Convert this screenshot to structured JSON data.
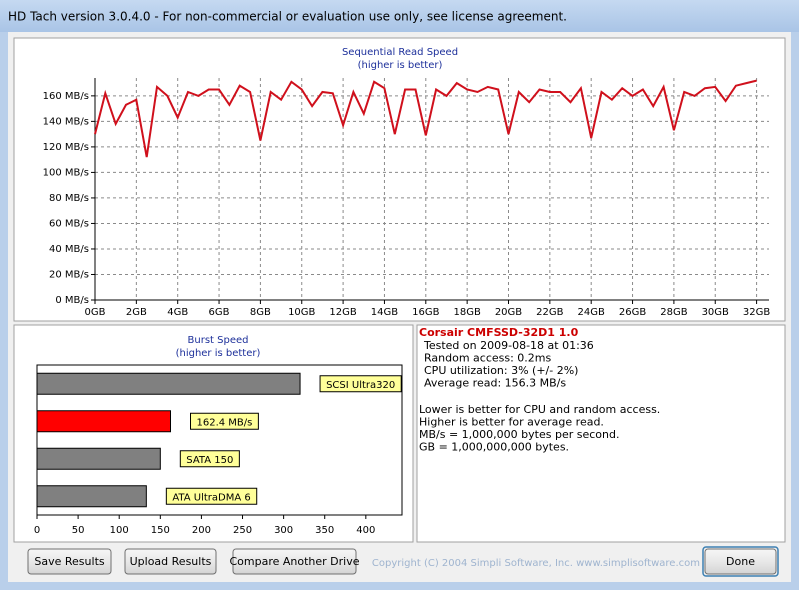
{
  "window": {
    "title": "HD Tach version 3.0.4.0  - For non-commercial or evaluation use only, see license agreement."
  },
  "chart_data": [
    {
      "type": "line",
      "title": "Sequential Read Speed",
      "subtitle": "(higher is better)",
      "color": "#d0101c",
      "grid": true,
      "x": [
        0,
        0.5,
        1,
        1.5,
        2,
        2.5,
        3,
        3.5,
        4,
        4.5,
        5,
        5.5,
        6,
        6.5,
        7,
        7.5,
        8,
        8.5,
        9,
        9.5,
        10,
        10.5,
        11,
        11.5,
        12,
        12.5,
        13,
        13.5,
        14,
        14.5,
        15,
        15.5,
        16,
        16.5,
        17,
        17.5,
        18,
        18.5,
        19,
        19.5,
        20,
        20.5,
        21,
        21.5,
        22,
        22.5,
        23,
        23.5,
        24,
        24.5,
        25,
        25.5,
        26,
        26.5,
        27,
        27.5,
        28,
        28.5,
        29,
        29.5,
        30,
        30.5,
        31,
        31.5,
        32
      ],
      "values": [
        130,
        162,
        138,
        153,
        157,
        112,
        167,
        160,
        143,
        163,
        160,
        165,
        165,
        153,
        168,
        163,
        125,
        163,
        157,
        171,
        165,
        152,
        163,
        162,
        137,
        163,
        146,
        171,
        166,
        130,
        165,
        165,
        129,
        165,
        160,
        170,
        165,
        163,
        167,
        165,
        130,
        163,
        155,
        165,
        163,
        163,
        155,
        166,
        127,
        163,
        157,
        166,
        160,
        165,
        152,
        167,
        133,
        163,
        160,
        166,
        167,
        156,
        168,
        170,
        172
      ],
      "xlim": [
        0,
        32.6
      ],
      "xticks": [
        {
          "value": 0,
          "label": "0GB"
        },
        {
          "value": 2,
          "label": "2GB"
        },
        {
          "value": 4,
          "label": "4GB"
        },
        {
          "value": 6,
          "label": "6GB"
        },
        {
          "value": 8,
          "label": "8GB"
        },
        {
          "value": 10,
          "label": "10GB"
        },
        {
          "value": 12,
          "label": "12GB"
        },
        {
          "value": 14,
          "label": "14GB"
        },
        {
          "value": 16,
          "label": "16GB"
        },
        {
          "value": 18,
          "label": "18GB"
        },
        {
          "value": 20,
          "label": "20GB"
        },
        {
          "value": 22,
          "label": "22GB"
        },
        {
          "value": 24,
          "label": "24GB"
        },
        {
          "value": 26,
          "label": "26GB"
        },
        {
          "value": 28,
          "label": "28GB"
        },
        {
          "value": 30,
          "label": "30GB"
        },
        {
          "value": 32,
          "label": "32GB"
        }
      ],
      "ylim": [
        0,
        174
      ],
      "yticks": [
        {
          "value": 0,
          "label": "0 MB/s"
        },
        {
          "value": 20,
          "label": "20 MB/s"
        },
        {
          "value": 40,
          "label": "40 MB/s"
        },
        {
          "value": 60,
          "label": "60 MB/s"
        },
        {
          "value": 80,
          "label": "80 MB/s"
        },
        {
          "value": 100,
          "label": "100 MB/s"
        },
        {
          "value": 120,
          "label": "120 MB/s"
        },
        {
          "value": 140,
          "label": "140 MB/s"
        },
        {
          "value": 160,
          "label": "160 MB/s"
        }
      ]
    },
    {
      "type": "barh",
      "title": "Burst Speed",
      "subtitle": "(higher is better)",
      "categories": [
        "SCSI Ultra320",
        null,
        "SATA 150",
        "ATA UltraDMA 6"
      ],
      "values": [
        320,
        162.4,
        150,
        133
      ],
      "value_labels": [
        null,
        "162.4 MB/s",
        null,
        null
      ],
      "colors": [
        "#808080",
        "#ff0000",
        "#808080",
        "#808080"
      ],
      "xlim": [
        0,
        444
      ],
      "xticks": [
        0,
        50,
        100,
        150,
        200,
        250,
        300,
        350,
        400
      ]
    }
  ],
  "info": {
    "drive": "Corsair CMFSSD-32D1 1.0",
    "details": [
      "Tested on 2009-08-18 at 01:36",
      "Random access: 0.2ms",
      "CPU utilization: 3% (+/- 2%)",
      "Average read: 156.3 MB/s"
    ],
    "notes": [
      "Lower is better for CPU and random access.",
      "Higher is better for average read.",
      "MB/s = 1,000,000 bytes per second.",
      "GB = 1,000,000,000 bytes."
    ]
  },
  "buttons": [
    "Save Results",
    "Upload Results",
    "Compare Another Drive"
  ],
  "copyright": "Copyright (C) 2004 Simpli Software, Inc. www.simplisoftware.com",
  "done_button": "Done"
}
